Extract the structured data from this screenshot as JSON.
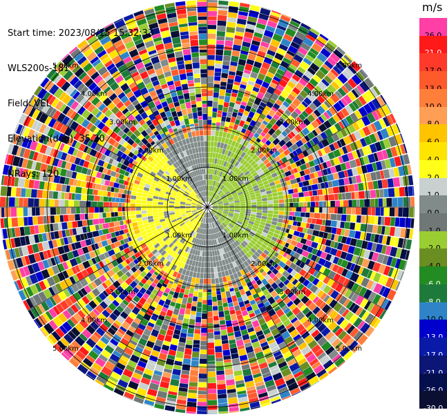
{
  "header": {
    "start_time": "Start time: 2023/08/15 15:32:33",
    "site": "WLS200s-181",
    "field": "Field: VEL",
    "elevation": "Elevation(deg): 35.30",
    "nrays": "NRays: 120"
  },
  "colorbar": {
    "unit": "m/s",
    "levels": [
      {
        "label": "26.0",
        "color": "#ff3fa6"
      },
      {
        "label": "21.0",
        "color": "#ff1919"
      },
      {
        "label": "17.0",
        "color": "#ff3a2a"
      },
      {
        "label": "13.0",
        "color": "#ff5a2c"
      },
      {
        "label": "10.0",
        "color": "#ff7f3a"
      },
      {
        "label": "8.0",
        "color": "#ff9f55"
      },
      {
        "label": "6.0",
        "color": "#ffc300"
      },
      {
        "label": "4.0",
        "color": "#ffe400"
      },
      {
        "label": "2.0",
        "color": "#ffff1a"
      },
      {
        "label": "1.0",
        "color": "#c8d1cf"
      },
      {
        "label": "0.0",
        "color": "#808b8a"
      },
      {
        "label": "-1.0",
        "color": "#6f7777"
      },
      {
        "label": "-2.0",
        "color": "#9acd32"
      },
      {
        "label": "-4.0",
        "color": "#6b8e23"
      },
      {
        "label": "-6.0",
        "color": "#228b22"
      },
      {
        "label": "-8.0",
        "color": "#1e7a3a"
      },
      {
        "label": "-10.0",
        "color": "#2f84c8"
      },
      {
        "label": "-13.0",
        "color": "#0000cd"
      },
      {
        "label": "-17.0",
        "color": "#0a1aa8"
      },
      {
        "label": "-21.0",
        "color": "#0b1676"
      },
      {
        "label": "-26.0",
        "color": "#050f4e"
      },
      {
        "label": "-30.0",
        "color": "#0b1033"
      }
    ]
  },
  "chart_data": {
    "type": "heatmap",
    "projection": "PPI polar",
    "field": "VEL",
    "unit": "m/s",
    "n_rays": 120,
    "range_ring_labels": [
      "1.00km",
      "2.00km",
      "3.00km",
      "4.00km",
      "5.00km"
    ],
    "ring_labels": {
      "ne": [
        "1.00km",
        "2.00km",
        "3.00km",
        "4.00km",
        "5.00km"
      ],
      "nw": [
        "1.00km",
        "2.00km",
        "3.00km",
        "4.00km",
        "5.00km"
      ],
      "se": [
        "1.00km",
        "2.00km",
        "3.00km",
        "4.00km",
        "5.00km"
      ],
      "sw": [
        "1.00km",
        "2.00km",
        "3.00km",
        "4.00km",
        "5.00km"
      ]
    },
    "inner_sectors": [
      {
        "azimuth_from": 0,
        "azimuth_to": 70,
        "value": -2.0
      },
      {
        "azimuth_from": 70,
        "azimuth_to": 140,
        "value": -2.0
      },
      {
        "azimuth_from": 140,
        "azimuth_to": 200,
        "value": 0.0
      },
      {
        "azimuth_from": 200,
        "azimuth_to": 320,
        "value": 2.0
      },
      {
        "azimuth_from": 320,
        "azimuth_to": 360,
        "value": 0.0
      }
    ],
    "grid": true
  }
}
